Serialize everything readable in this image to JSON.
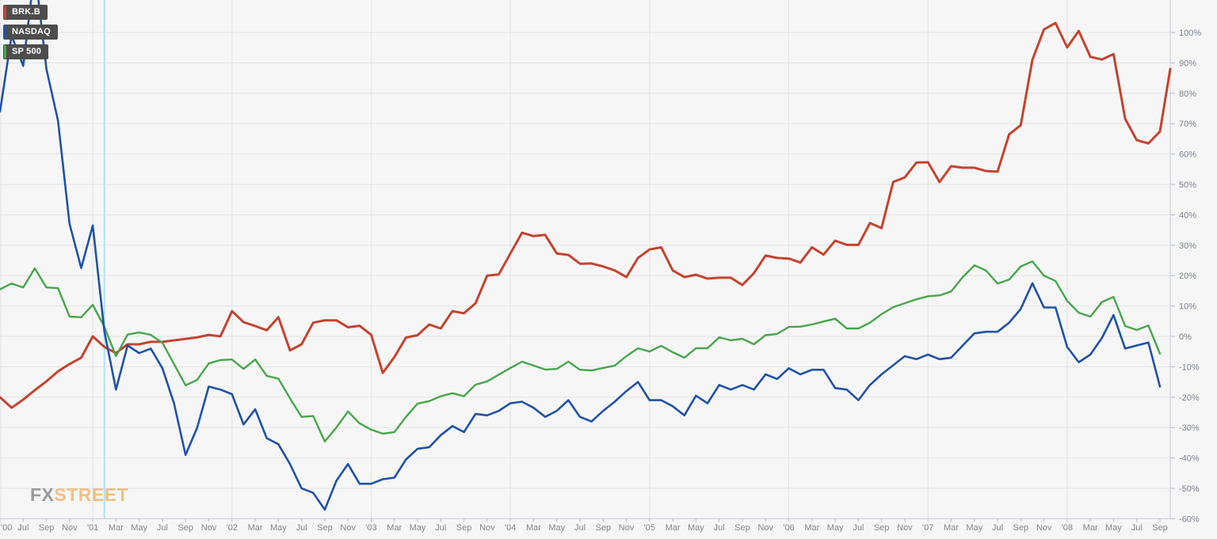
{
  "legend": [
    {
      "label": "BRK.B",
      "color": "#c4432f"
    },
    {
      "label": "NASDAQ",
      "color": "#1f52a5"
    },
    {
      "label": "SP 500",
      "color": "#47a64b"
    }
  ],
  "watermark": {
    "fx": "FX",
    "street": "STREET"
  },
  "colors": {
    "background": "#f6f6f6",
    "gridline": "#e3e3e6",
    "axis_line": "#c6cbd4",
    "tick_mark": "#b6bcc6",
    "x_label": "#85858a",
    "y_label": "#7d828c",
    "highlight_line": "#b5e1f2",
    "legend_box": "#4d4d4d"
  },
  "chart_data": {
    "type": "line",
    "title": "",
    "xlabel": "",
    "ylabel": "",
    "frequency": "monthly",
    "x_start": "May 2000",
    "x_end": "Oct 2008",
    "ylim": [
      -60,
      110
    ],
    "grid": true,
    "legend_position": "top-left",
    "y_tick_labels": [
      "100%",
      "90%",
      "80%",
      "70%",
      "60%",
      "50%",
      "40%",
      "30%",
      "20%",
      "10%",
      "0%",
      "-10%",
      "-20%",
      "-30%",
      "-40%",
      "-50%",
      "-60%"
    ],
    "x_tick_labels": [
      "'00",
      "Jul",
      "Sep",
      "Nov",
      "'01",
      "Mar",
      "May",
      "Jul",
      "Sep",
      "Nov",
      "'02",
      "Mar",
      "May",
      "Jul",
      "Sep",
      "Nov",
      "'03",
      "Mar",
      "May",
      "Jul",
      "Sep",
      "Nov",
      "'04",
      "Mar",
      "May",
      "Jul",
      "Sep",
      "Nov",
      "'05",
      "Mar",
      "May",
      "Jul",
      "Sep",
      "Nov",
      "'06",
      "Mar",
      "May",
      "Jul",
      "Sep",
      "Nov",
      "'07",
      "Mar",
      "May",
      "Jul",
      "Sep",
      "Nov",
      "'08",
      "Mar",
      "May",
      "Jul",
      "Sep"
    ],
    "annotations": {
      "vertical_highlight_month_index": 9
    },
    "series": [
      {
        "name": "BRK.B",
        "color": "#c4432f",
        "values_pct": [
          -20,
          -23.5,
          -20.8,
          -17.7,
          -14.8,
          -11.5,
          -9.1,
          -7,
          0,
          -3.5,
          -5.5,
          -2.6,
          -2.6,
          -1.8,
          -1.8,
          -1.3,
          -0.8,
          -0.3,
          0.5,
          0,
          8.3,
          4.7,
          3.4,
          2,
          6.3,
          -4.6,
          -2.6,
          4.5,
          5.3,
          5.3,
          3,
          3.5,
          0.5,
          -12,
          -6.8,
          -0.4,
          0.4,
          3.9,
          2.6,
          8.3,
          7.6,
          10.9,
          20,
          20.4,
          27.3,
          34.1,
          33,
          33.4,
          27.3,
          26.8,
          23.9,
          24,
          23,
          21.7,
          19.5,
          25.8,
          28.6,
          29.3,
          21.7,
          19.5,
          20.3,
          19,
          19.3,
          19.3,
          16.9,
          20.8,
          26.6,
          25.8,
          25.6,
          24.3,
          29.3,
          26.9,
          31.5,
          30.1,
          30.1,
          37.3,
          35.6,
          50.8,
          52.3,
          57.2,
          57.3,
          50.8,
          56,
          55.5,
          55.5,
          54.4,
          54.2,
          66.5,
          69.5,
          91,
          101,
          103.1,
          95.1,
          100.5,
          92,
          91.1,
          92.9,
          71.6,
          64.6,
          63.5,
          67.4,
          88
        ]
      },
      {
        "name": "NASDAQ",
        "color": "#1f52a5",
        "values_pct": [
          74,
          99,
          89,
          121,
          88,
          71,
          37,
          22.5,
          36.5,
          1.5,
          -17.5,
          -3,
          -5.5,
          -4,
          -10.5,
          -22,
          -39,
          -30,
          -16.5,
          -17.5,
          -19,
          -29,
          -24,
          -33.5,
          -35.5,
          -42,
          -50,
          -51.5,
          -57,
          -47.5,
          -42,
          -48.5,
          -48.5,
          -47,
          -46.5,
          -40.5,
          -37,
          -36.5,
          -32.5,
          -29.5,
          -31.5,
          -25.5,
          -26,
          -24.5,
          -22,
          -21.5,
          -23.5,
          -26.5,
          -24.5,
          -21,
          -26.5,
          -28,
          -24.5,
          -21.5,
          -18,
          -15,
          -21,
          -21,
          -23,
          -26,
          -19.5,
          -22,
          -16,
          -17.5,
          -16,
          -17.5,
          -12.5,
          -14,
          -10.5,
          -12.5,
          -11,
          -11,
          -17,
          -17.5,
          -21,
          -16,
          -12.5,
          -9.5,
          -6.5,
          -7.5,
          -6,
          -7.5,
          -7,
          -3,
          1,
          1.5,
          1.5,
          4.5,
          9,
          17.5,
          9.5,
          9.5,
          -3.5,
          -8.5,
          -6,
          -0.5,
          7,
          -4,
          -3,
          -2,
          -16.5
        ]
      },
      {
        "name": "SP 500",
        "color": "#47a64b",
        "values_pct": [
          15.5,
          17.4,
          16.1,
          22.4,
          16.1,
          15.9,
          6.5,
          6.3,
          10.4,
          3.1,
          -6.5,
          0.6,
          1.3,
          0.5,
          -2.1,
          -9.1,
          -16.1,
          -14.3,
          -8.9,
          -7.8,
          -7.6,
          -10.7,
          -7.6,
          -13,
          -13.9,
          -20.4,
          -26.5,
          -26.2,
          -34.6,
          -30,
          -24.7,
          -28.6,
          -30.7,
          -32,
          -31.5,
          -26.5,
          -22.1,
          -21.3,
          -19.7,
          -18.7,
          -19.7,
          -15.9,
          -14.8,
          -12.6,
          -10.4,
          -8.3,
          -9.6,
          -10.9,
          -10.7,
          -8.3,
          -11,
          -11.2,
          -10.4,
          -9.6,
          -6.5,
          -3.9,
          -5,
          -3.1,
          -5.2,
          -7,
          -3.9,
          -3.9,
          -0.3,
          -1.3,
          -0.8,
          -2.6,
          0.4,
          0.8,
          3.1,
          3.2,
          3.9,
          4.9,
          5.8,
          2.6,
          2.6,
          4.5,
          7.3,
          9.6,
          10.9,
          12.2,
          13.2,
          13.5,
          14.8,
          19.5,
          23.4,
          21.7,
          17.4,
          18.7,
          23,
          24.7,
          20,
          18.2,
          11.7,
          7.8,
          6.5,
          11.3,
          13,
          3.4,
          2.1,
          3.6,
          -5.7
        ]
      }
    ]
  }
}
